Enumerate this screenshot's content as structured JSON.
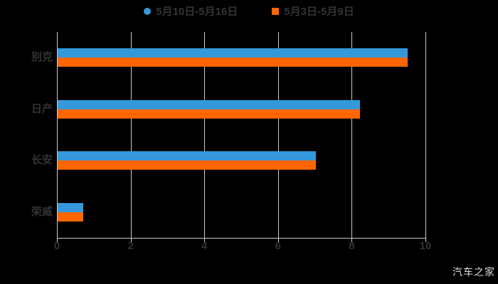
{
  "chart_data": {
    "type": "bar",
    "orientation": "horizontal",
    "title": "",
    "categories": [
      "别克",
      "日产",
      "长安",
      "荣威"
    ],
    "series": [
      {
        "name": "5月10日-5月16日",
        "color": "#3498db",
        "marker": "circle",
        "values": [
          9.5,
          8.2,
          7.0,
          0.7
        ]
      },
      {
        "name": "5月3日-5月9日",
        "color": "#ff6600",
        "marker": "square",
        "values": [
          9.5,
          8.2,
          7.0,
          0.7
        ]
      }
    ],
    "xlabel": "",
    "ylabel": "",
    "xlim": [
      0,
      10
    ],
    "xticks": [
      0,
      2,
      4,
      6,
      8,
      10
    ],
    "grid": true,
    "legend_position": "top"
  },
  "colors": {
    "background": "#000000",
    "axis_text": "#333333",
    "gridline": "#cccccc",
    "watermark": "#dddddd"
  },
  "watermark": {
    "text": "汽车之家"
  }
}
